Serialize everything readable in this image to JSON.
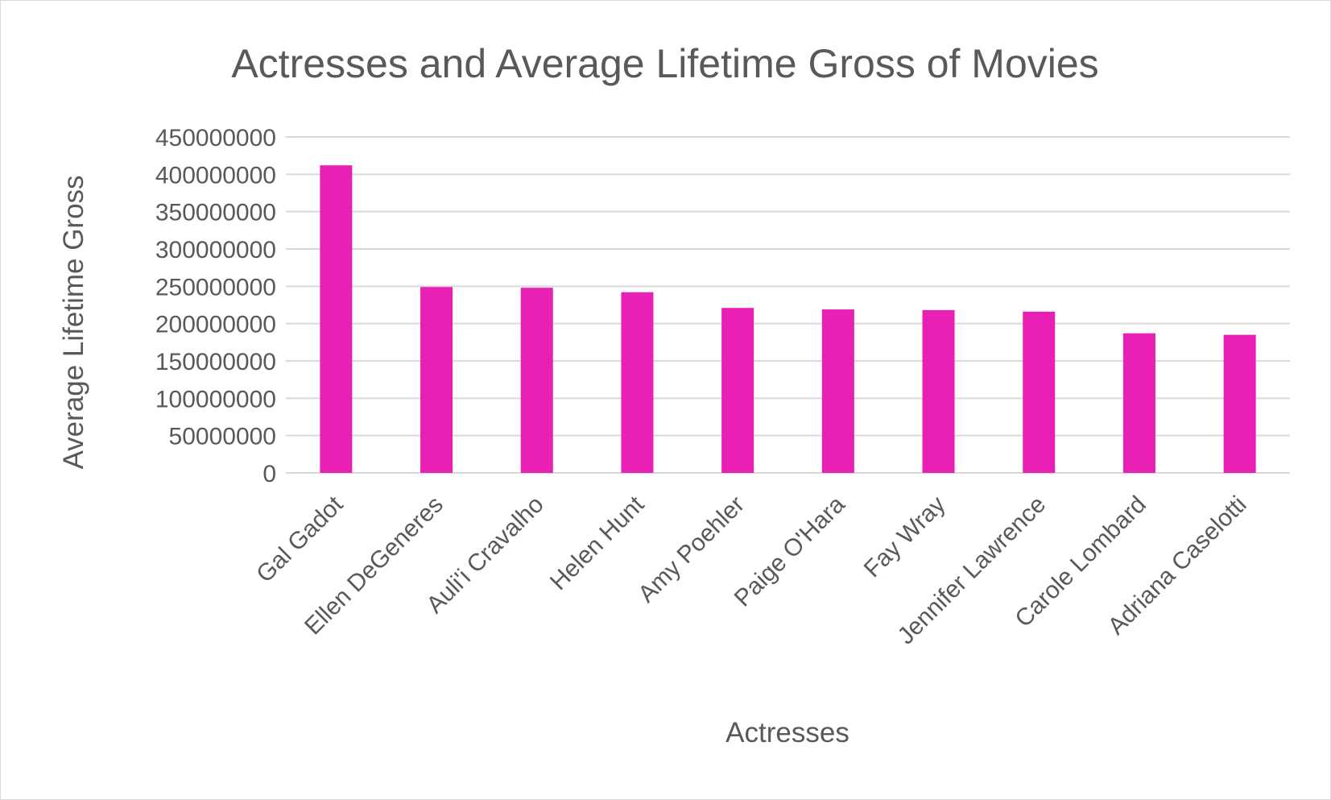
{
  "chart_data": {
    "type": "bar",
    "title": "Actresses and Average Lifetime Gross of Movies",
    "xlabel": "Actresses",
    "ylabel": "Average Lifetime Gross",
    "categories": [
      "Gal Gadot",
      "Ellen DeGeneres",
      "Auli'i Cravalho",
      "Helen Hunt",
      "Amy Poehler",
      "Paige O'Hara",
      "Fay Wray",
      "Jennifer Lawrence",
      "Carole Lombard",
      "Adriana Caselotti"
    ],
    "values": [
      412000000,
      249000000,
      248000000,
      242000000,
      221000000,
      219000000,
      218000000,
      216000000,
      187000000,
      185000000
    ],
    "ylim": [
      0,
      450000000
    ],
    "yticks": [
      "0",
      "50000000",
      "100000000",
      "150000000",
      "200000000",
      "250000000",
      "300000000",
      "350000000",
      "400000000",
      "450000000"
    ],
    "bar_color": "#e820b4",
    "grid": true,
    "legend": "none"
  }
}
